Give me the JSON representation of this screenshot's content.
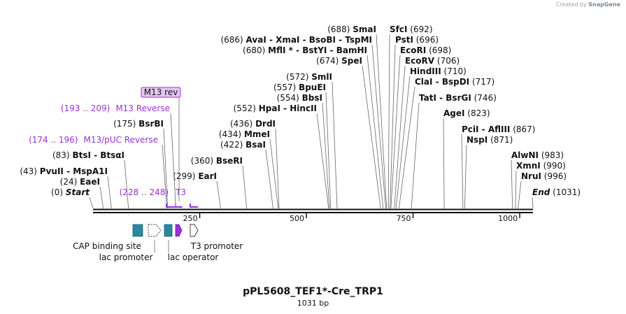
{
  "credit": {
    "prefix": "Created by",
    "brand": "SnapGene"
  },
  "plasmid": {
    "name": "pPL5608_TEF1*-Cre_TRP1",
    "length_label": "1031 bp",
    "length": 1031
  },
  "ruler": {
    "ticks": [
      {
        "pos": 250,
        "label": "250"
      },
      {
        "pos": 500,
        "label": "500"
      },
      {
        "pos": 750,
        "label": "750"
      },
      {
        "pos": 1000,
        "label": "1000"
      }
    ]
  },
  "sites": [
    {
      "pos": 0,
      "text": "(0) ",
      "name": "Start",
      "italic": true
    },
    {
      "pos": 24,
      "text": "(24) ",
      "name": "EaeI"
    },
    {
      "pos": 43,
      "text": "(43) ",
      "name": "PvuII - MspA1I"
    },
    {
      "pos": 83,
      "text": "(83) ",
      "name": "BtsI - BtsαI"
    },
    {
      "pos": 175,
      "text": "(175) ",
      "name": "BsrBI"
    },
    {
      "pos": 299,
      "text": "(299) ",
      "name": "EarI"
    },
    {
      "pos": 360,
      "text": "(360) ",
      "name": "BseRI"
    },
    {
      "pos": 422,
      "text": "(422) ",
      "name": "BsaI"
    },
    {
      "pos": 434,
      "text": "(434) ",
      "name": "MmeI"
    },
    {
      "pos": 436,
      "text": "(436) ",
      "name": "DrdI"
    },
    {
      "pos": 552,
      "text": "(552) ",
      "name": "HpaI - HincII"
    },
    {
      "pos": 554,
      "text": "(554) ",
      "name": "BbsI"
    },
    {
      "pos": 557,
      "text": "(557) ",
      "name": "BpuEI"
    },
    {
      "pos": 572,
      "text": "(572) ",
      "name": "SmlI"
    },
    {
      "pos": 674,
      "text": "(674) ",
      "name": "SpeI"
    },
    {
      "pos": 680,
      "text": "(680) ",
      "name": "MflI * - BstYI - BamHI"
    },
    {
      "pos": 686,
      "text": "(686) ",
      "name": "AvaI - XmaI - BsoBI - TspMI"
    },
    {
      "pos": 688,
      "text": "(688) ",
      "name": "SmaI"
    },
    {
      "pos": 692,
      "name": "SfcI",
      "text": " (692)"
    },
    {
      "pos": 696,
      "name": "PstI",
      "text": " (696)"
    },
    {
      "pos": 698,
      "name": "EcoRI",
      "text": " (698)"
    },
    {
      "pos": 706,
      "name": "EcoRV",
      "text": " (706)"
    },
    {
      "pos": 710,
      "name": "HindIII",
      "text": " (710)"
    },
    {
      "pos": 717,
      "name": "ClaI - BspDI",
      "text": " (717)"
    },
    {
      "pos": 746,
      "name": "TatI - BsrGI",
      "text": " (746)"
    },
    {
      "pos": 823,
      "name": "AgeI",
      "text": " (823)"
    },
    {
      "pos": 867,
      "name": "PciI - AflIII",
      "text": " (867)"
    },
    {
      "pos": 871,
      "name": "NspI",
      "text": " (871)"
    },
    {
      "pos": 983,
      "name": "AlwNI",
      "text": " (983)"
    },
    {
      "pos": 990,
      "name": "XmnI",
      "text": " (990)"
    },
    {
      "pos": 996,
      "name": "NruI",
      "text": " (996)"
    },
    {
      "pos": 1031,
      "name": "End",
      "text": " (1031)",
      "italic": true
    }
  ],
  "primers": [
    {
      "name": "M13 rev",
      "boxed": true
    },
    {
      "range": "(193 .. 209)",
      "name": "M13 Reverse"
    },
    {
      "range": "(174 .. 196)",
      "name": "M13/pUC Reverse"
    },
    {
      "range": "(228 .. 248)",
      "name": "T3"
    }
  ],
  "features": [
    {
      "name": "CAP binding site"
    },
    {
      "name": "lac promoter"
    },
    {
      "name": "lac operator"
    },
    {
      "name": "T3 promoter"
    }
  ],
  "colors": {
    "feature_teal": "#2b879e",
    "primer_purple": "#9b30d6",
    "primer_box": "#e4c6f2",
    "line": "#666666",
    "backbone": "#111111"
  }
}
